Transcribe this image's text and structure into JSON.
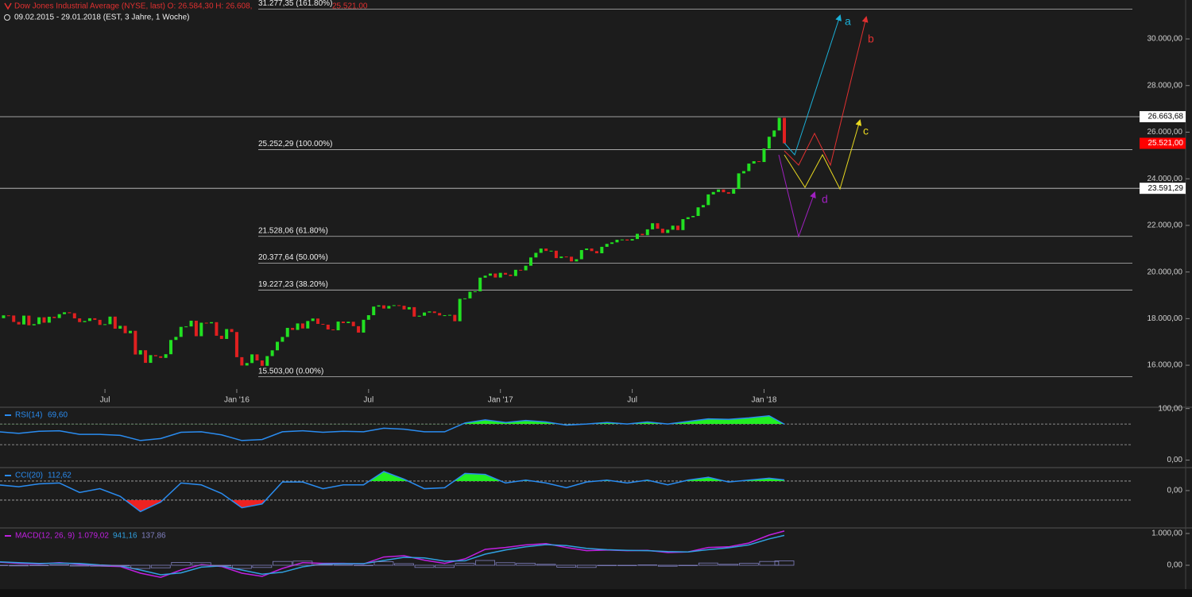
{
  "header": {
    "title": "Dow Jones Industrial Average (NYSE, last)  O: 26.584,30  H: 26.608,",
    "overlay_value": "25.521,00",
    "range": "09.02.2015 - 29.01.2018  (EST, 3 Jahre, 1 Woche)"
  },
  "chart_data": [
    {
      "type": "candlestick",
      "up_color": "#22e022",
      "down_color": "#e02020",
      "values": [
        18019,
        18140,
        18133,
        17856,
        17749,
        18128,
        17712,
        17763,
        18057,
        17826,
        18080,
        18024,
        18191,
        18272,
        18232,
        18010,
        17849,
        17898,
        18015,
        17947,
        17730,
        17760,
        18086,
        17568,
        17690,
        17373,
        17477,
        16460,
        16643,
        16102,
        16433,
        16385,
        16315,
        16472,
        17084,
        17216,
        17646,
        17664,
        17910,
        17245,
        17824,
        17798,
        17848,
        17265,
        17128,
        17552,
        17425,
        16346,
        15988,
        16094,
        16466,
        16205,
        15974,
        16392,
        16640,
        17006,
        17213,
        17602,
        17515,
        17793,
        17577,
        17897,
        18004,
        17774,
        17740,
        17535,
        17500,
        17873,
        17807,
        17865,
        17675,
        17400,
        17949,
        18147,
        18516,
        18570,
        18432,
        18543,
        18576,
        18552,
        18395,
        18492,
        18085,
        18124,
        18262,
        18308,
        18240,
        18138,
        18145,
        18161,
        17888,
        18848,
        18868,
        19152,
        19171,
        19757,
        19843,
        19934,
        19763,
        19964,
        19886,
        19827,
        20094,
        20071,
        20269,
        20624,
        20822,
        21005,
        20903,
        20914,
        20596,
        20663,
        20656,
        20453,
        20548,
        20941,
        21007,
        20897,
        20804,
        21080,
        21206,
        21271,
        21384,
        21395,
        21350,
        21414,
        21638,
        21580,
        21830,
        22092,
        21858,
        21675,
        21814,
        21988,
        21798,
        22268,
        22350,
        22405,
        22774,
        22871,
        23329,
        23434,
        23539,
        23422,
        23358,
        23558,
        24232,
        24329,
        24652,
        24754,
        24719,
        25296,
        25803,
        26072,
        26616,
        25521
      ],
      "xlim": [
        0.3,
        223.65
      ],
      "xticks": [
        {
          "value": 21,
          "label": "Jul"
        },
        {
          "value": 47,
          "label": "Jan '16"
        },
        {
          "value": 73,
          "label": "Jul"
        },
        {
          "value": 99,
          "label": "Jan '17"
        },
        {
          "value": 125,
          "label": "Jul"
        },
        {
          "value": 151,
          "label": "Jan '18"
        }
      ],
      "ylim": [
        14980,
        31670
      ],
      "yticks": [
        {
          "value": 16000,
          "label": "16.000,00"
        },
        {
          "value": 18000,
          "label": "18.000,00"
        },
        {
          "value": 20000,
          "label": "20.000,00"
        },
        {
          "value": 22000,
          "label": "22.000,00"
        },
        {
          "value": 24000,
          "label": "24.000,00"
        },
        {
          "value": 26000,
          "label": "26.000,00"
        },
        {
          "value": 28000,
          "label": "28.000,00"
        },
        {
          "value": 30000,
          "label": "30.000,00"
        }
      ],
      "levels": [
        {
          "value": 31277.35,
          "label": "31.277,35 (161.80%)"
        },
        {
          "value": 25252.29,
          "label": "25.252,29 (100.00%)"
        },
        {
          "value": 21528.06,
          "label": "21.528,06 (61.80%)"
        },
        {
          "value": 20377.64,
          "label": "20.377,64 (50.00%)"
        },
        {
          "value": 19227.23,
          "label": "19.227,23 (38.20%)"
        },
        {
          "value": 15503,
          "label": "15.503,00 (0.00%)"
        }
      ],
      "price_tags": [
        {
          "value": 26663.68,
          "label": "26.663,68",
          "color": "#ffffff"
        },
        {
          "value": 25521,
          "label": "25.521,00",
          "color": "#ff0000"
        },
        {
          "value": 23591.29,
          "label": "23.591,29",
          "color": "#ffffff"
        }
      ],
      "wave_labels": [
        "a",
        "b",
        "c",
        "d"
      ]
    },
    {
      "type": "line",
      "label": "RSI(14)",
      "legend_value": "69,60",
      "color": "#2a8cf0",
      "fill_above": "#22ee22",
      "x": [
        0,
        4,
        8,
        12,
        16,
        20,
        24,
        28,
        32,
        36,
        40,
        44,
        48,
        52,
        56,
        60,
        64,
        68,
        72,
        76,
        80,
        84,
        88,
        92,
        96,
        100,
        104,
        108,
        112,
        116,
        120,
        124,
        128,
        132,
        136,
        140,
        144,
        148,
        152,
        155
      ],
      "values": [
        55,
        52,
        56,
        57,
        50,
        50,
        48,
        38,
        42,
        54,
        55,
        49,
        38,
        40,
        55,
        57,
        54,
        56,
        55,
        62,
        60,
        55,
        55,
        72,
        78,
        73,
        77,
        74,
        68,
        70,
        73,
        70,
        74,
        70,
        75,
        80,
        79,
        82,
        86,
        69.6
      ],
      "thresholds": [
        70,
        30
      ],
      "ylim": [
        -16,
        101
      ],
      "yticks": [
        {
          "value": 100,
          "label": "100,00"
        },
        {
          "value": 0,
          "label": "0,00"
        }
      ]
    },
    {
      "type": "line",
      "label": "CCI(20)",
      "legend_value": "112,62",
      "color": "#2a8cf0",
      "fill_above": "#22ee22",
      "fill_below": "#ee2222",
      "x": [
        0,
        4,
        8,
        12,
        16,
        20,
        24,
        28,
        32,
        36,
        40,
        44,
        48,
        52,
        56,
        60,
        64,
        68,
        72,
        76,
        80,
        84,
        88,
        92,
        96,
        100,
        104,
        108,
        112,
        116,
        120,
        124,
        128,
        132,
        136,
        140,
        144,
        148,
        152,
        155
      ],
      "values": [
        60,
        40,
        70,
        80,
        -20,
        20,
        -60,
        -220,
        -120,
        80,
        60,
        -30,
        -180,
        -140,
        90,
        90,
        20,
        60,
        60,
        200,
        120,
        20,
        30,
        180,
        170,
        80,
        110,
        80,
        30,
        90,
        110,
        80,
        110,
        60,
        110,
        140,
        90,
        110,
        130,
        112.62
      ],
      "thresholds": [
        100,
        -100
      ],
      "ylim": [
        -392,
        233
      ],
      "yticks": [
        {
          "value": 0,
          "label": "0,00"
        }
      ]
    },
    {
      "type": "macd",
      "label": "MACD(12, 26, 9)",
      "x": [
        0,
        4,
        8,
        12,
        16,
        20,
        24,
        28,
        32,
        36,
        40,
        44,
        48,
        52,
        56,
        60,
        64,
        68,
        72,
        76,
        80,
        84,
        88,
        92,
        96,
        100,
        104,
        108,
        112,
        116,
        120,
        124,
        128,
        132,
        136,
        140,
        144,
        148,
        152,
        155
      ],
      "series": [
        {
          "color": "#c020e0",
          "value_label": "1.079,02",
          "values": [
            100,
            60,
            40,
            80,
            30,
            -20,
            -40,
            -250,
            -380,
            -150,
            20,
            -40,
            -250,
            -350,
            -100,
            80,
            60,
            60,
            40,
            260,
            300,
            160,
            60,
            200,
            500,
            560,
            640,
            680,
            560,
            460,
            480,
            460,
            470,
            400,
            420,
            560,
            580,
            700,
            950,
            1079.02
          ]
        },
        {
          "color": "#30a0e0",
          "value_label": "941,16",
          "values": [
            110,
            80,
            55,
            65,
            55,
            10,
            -20,
            -150,
            -300,
            -240,
            -60,
            -20,
            -150,
            -280,
            -220,
            -50,
            40,
            50,
            50,
            150,
            250,
            230,
            130,
            140,
            350,
            480,
            580,
            650,
            620,
            530,
            490,
            470,
            460,
            430,
            420,
            490,
            550,
            640,
            830,
            941.16
          ]
        },
        {
          "color": "#8080c0",
          "value_label": "137,86",
          "bars": true,
          "values": [
            -10,
            -20,
            -15,
            15,
            -25,
            -30,
            -20,
            -100,
            -80,
            90,
            80,
            -20,
            -100,
            -70,
            120,
            130,
            20,
            10,
            -10,
            110,
            50,
            -70,
            -70,
            60,
            150,
            80,
            60,
            30,
            -60,
            -70,
            -10,
            -10,
            10,
            -30,
            0,
            70,
            30,
            60,
            120,
            137.86
          ]
        }
      ],
      "ylim": [
        -750,
        1175
      ],
      "yticks": [
        {
          "value": 1000,
          "label": "1.000,00"
        },
        {
          "value": 0,
          "label": "0,00"
        }
      ]
    }
  ]
}
